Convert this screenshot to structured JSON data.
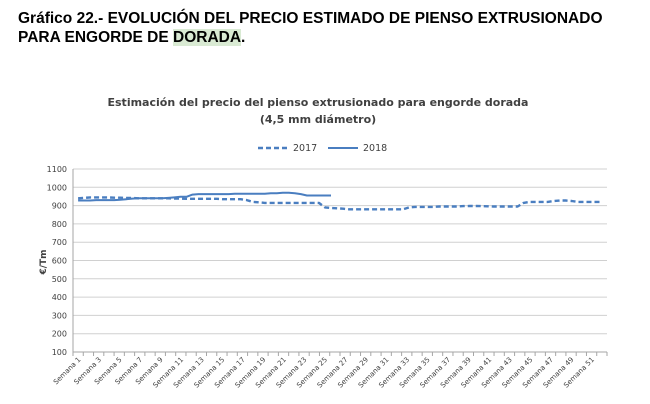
{
  "heading": {
    "line1": "Gráfico 22.- EVOLUCIÓN DEL PRECIO ESTIMADO DE PIENSO EXTRUSIONADO",
    "line2_prefix": "PARA ENGORDE DE ",
    "line2_highlight": "DORADA",
    "line2_suffix": "."
  },
  "colors": {
    "series": "#4a7ec0",
    "grid": "#d0d0d0",
    "axis": "#a6a6a6",
    "highlight": "#d9ead3"
  },
  "chart_data": {
    "type": "line",
    "title_line1": "Estimación del precio del pienso extrusionado para engorde dorada",
    "title_line2": "(4,5 mm diámetro)",
    "ylabel": "€/Tm",
    "xlabel": "",
    "ylim": [
      100,
      1100
    ],
    "yticks": [
      100,
      200,
      300,
      400,
      500,
      600,
      700,
      800,
      900,
      1000,
      1100
    ],
    "grid": true,
    "legend_position": "top-center",
    "x_tick_labels": [
      "Semana 1",
      "Semana 3",
      "Semana 5",
      "Semana 7",
      "Semana 9",
      "Semana 11",
      "Semana 13",
      "Semana 15",
      "Semana 17",
      "Semana 19",
      "Semana 21",
      "Semana 23",
      "Semana 25",
      "Semana 27",
      "Semana 29",
      "Semana 31",
      "Semana 33",
      "Semana 35",
      "Semana 37",
      "Semana 39",
      "Semana 41",
      "Semana 43",
      "Semana 45",
      "Semana 47",
      "Semana 49",
      "Semana 51"
    ],
    "series": [
      {
        "name": "2017",
        "style": "dashed",
        "values": [
          940,
          942,
          945,
          945,
          945,
          945,
          943,
          943,
          942,
          942,
          940,
          940,
          940,
          940,
          940,
          940,
          938,
          938,
          937,
          937,
          937,
          937,
          937,
          937,
          935,
          935,
          935,
          935,
          930,
          920,
          918,
          915,
          915,
          915,
          915,
          915,
          915,
          915,
          915,
          915,
          915,
          890,
          887,
          885,
          883,
          880,
          880,
          880,
          880,
          880,
          880,
          880,
          880,
          880,
          880,
          890,
          893,
          893,
          893,
          893,
          895,
          895,
          895,
          895,
          897,
          898,
          898,
          897,
          896,
          895,
          895,
          895,
          895,
          895,
          915,
          920,
          920,
          920,
          920,
          925,
          928,
          928,
          925,
          920,
          920,
          920,
          920,
          920
        ]
      },
      {
        "name": "2018",
        "style": "solid",
        "values": [
          928,
          928,
          928,
          930,
          930,
          930,
          930,
          932,
          935,
          938,
          940,
          940,
          940,
          940,
          940,
          942,
          945,
          948,
          948,
          960,
          963,
          963,
          963,
          963,
          963,
          963,
          965,
          965,
          965,
          965,
          965,
          965,
          968,
          968,
          970,
          970,
          968,
          963,
          955,
          955,
          955,
          955,
          955
        ]
      }
    ]
  }
}
